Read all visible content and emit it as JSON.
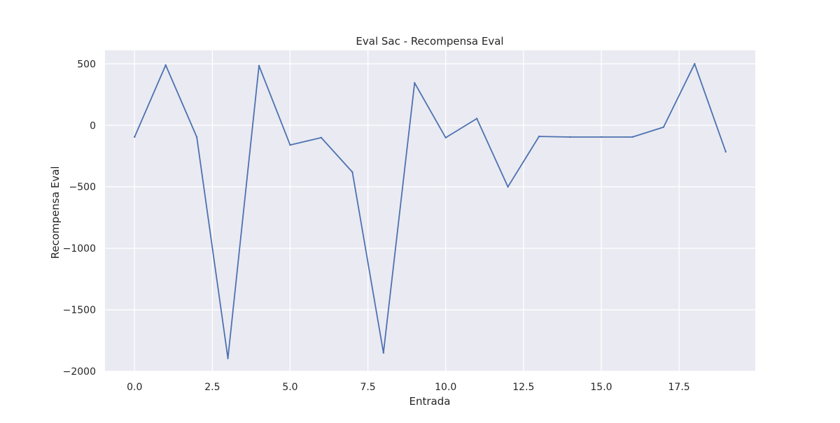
{
  "chart_data": {
    "type": "line",
    "title": "Eval Sac - Recompensa Eval",
    "xlabel": "Entrada",
    "ylabel": "Recompensa Eval",
    "xlim": [
      -0.95,
      19.95
    ],
    "ylim": [
      -2000,
      610
    ],
    "xticks": [
      0.0,
      2.5,
      5.0,
      7.5,
      10.0,
      12.5,
      15.0,
      17.5
    ],
    "xtick_labels": [
      "0.0",
      "2.5",
      "5.0",
      "7.5",
      "10.0",
      "12.5",
      "15.0",
      "17.5"
    ],
    "yticks": [
      500,
      0,
      -500,
      -1000,
      -1500,
      -2000
    ],
    "ytick_labels": [
      "500",
      "0",
      "−500",
      "−1000",
      "−1500",
      "−2000"
    ],
    "grid": true,
    "legend": false,
    "colors": {
      "line": "#4c72b0",
      "background": "#eaeaf2",
      "grid": "#ffffff"
    },
    "series": [
      {
        "x": [
          0,
          1,
          2,
          3,
          4,
          5,
          6,
          7,
          8,
          9,
          10,
          11,
          12,
          13,
          14,
          15,
          16,
          17,
          18,
          19
        ],
        "values": [
          -95,
          490,
          -95,
          -1895,
          485,
          -160,
          -100,
          -380,
          -1850,
          345,
          -100,
          55,
          -500,
          -90,
          -95,
          -95,
          -95,
          -15,
          500,
          -215
        ]
      }
    ]
  }
}
